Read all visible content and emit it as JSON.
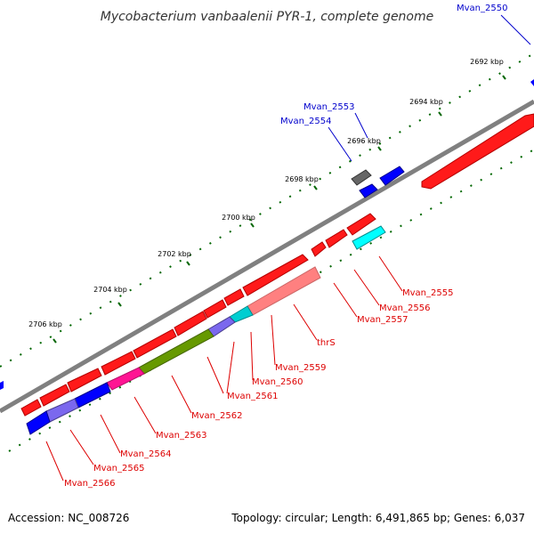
{
  "header": {
    "title": "Mycobacterium vanbaalenii PYR-1, complete genome"
  },
  "footer": {
    "accession": "Accession: NC_008726",
    "summary": "Topology: circular; Length: 6,491,865 bp; Genes: 6,037"
  },
  "colors": {
    "forward_gene": "#ff0000",
    "reverse_gene": "#0000ff",
    "gray_feature": "#666666",
    "cyan_feature": "#00ffff",
    "pink_feature": "#ff8080",
    "olive_feature": "#669900",
    "magenta_feature": "#ff1493",
    "purple_feature": "#7b68ee",
    "backbone": "#888888",
    "forward_label": "#cc0000",
    "reverse_label": "#0000cc",
    "tick": "#006600"
  },
  "kbp_ticks": [
    "2692 kbp",
    "2694 kbp",
    "2696 kbp",
    "2698 kbp",
    "2700 kbp",
    "2702 kbp",
    "2704 kbp",
    "2706 kbp"
  ],
  "gene_labels": {
    "top": [
      "Mvan_2550",
      "Mvan_2553",
      "Mvan_2554"
    ],
    "bottom": [
      "Mvan_2555",
      "Mvan_2556",
      "Mvan_2557",
      "thrS",
      "Mvan_2559",
      "Mvan_2560",
      "Mvan_2561",
      "Mvan_2562",
      "Mvan_2563",
      "Mvan_2564",
      "Mvan_2565",
      "Mvan_2566"
    ]
  }
}
